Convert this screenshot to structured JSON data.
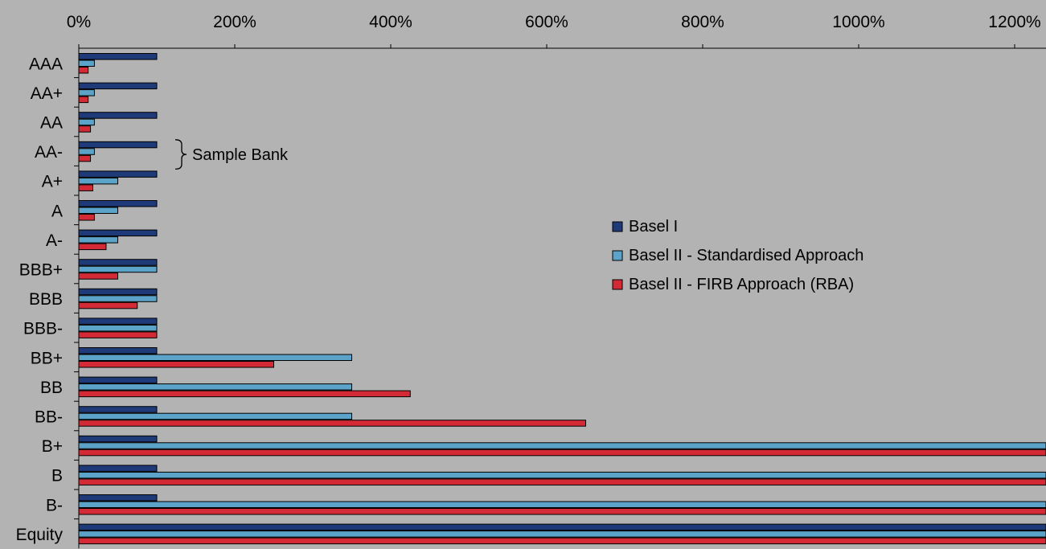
{
  "chart_data": {
    "type": "bar",
    "orientation": "horizontal",
    "title": "",
    "xlabel": "",
    "ylabel": "",
    "xlim": [
      0,
      1240
    ],
    "x_ticks": [
      "0%",
      "200%",
      "400%",
      "600%",
      "800%",
      "1000%",
      "1200%"
    ],
    "x_tick_values": [
      0,
      200,
      400,
      600,
      800,
      1000,
      1200
    ],
    "grid": false,
    "legend_position": "right-center",
    "categories": [
      "AAA",
      "AA+",
      "AA",
      "AA-",
      "A+",
      "A",
      "A-",
      "BBB+",
      "BBB",
      "BBB-",
      "BB+",
      "BB",
      "BB-",
      "B+",
      "B",
      "B-",
      "Equity"
    ],
    "series": [
      {
        "name": "Basel I",
        "color": "#1f3a78",
        "values": [
          100,
          100,
          100,
          100,
          100,
          100,
          100,
          100,
          100,
          100,
          100,
          100,
          100,
          100,
          100,
          100,
          1250
        ]
      },
      {
        "name": "Basel II - Standardised Approach",
        "color": "#5ba3c8",
        "values": [
          20,
          20,
          20,
          20,
          50,
          50,
          50,
          100,
          100,
          100,
          350,
          350,
          350,
          1250,
          1250,
          1250,
          1250
        ]
      },
      {
        "name": "Basel II - FIRB Approach (RBA)",
        "color": "#d42a35",
        "values": [
          12,
          12,
          15,
          15,
          18,
          20,
          35,
          50,
          75,
          100,
          250,
          425,
          650,
          1250,
          1250,
          1250,
          1250
        ]
      }
    ],
    "annotations": [
      {
        "text": "Sample Bank",
        "spans_categories": [
          "AA-",
          "A+"
        ]
      }
    ]
  }
}
